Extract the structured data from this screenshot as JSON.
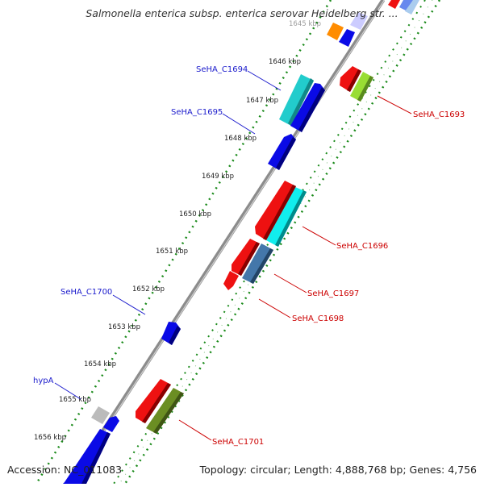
{
  "title": "Salmonella enterica subsp. enterica serovar Heidelberg str. ...",
  "accession": "Accession: NC_011083",
  "topology": "Topology: circular; Length: 4,888,768 bp; Genes: 4,756",
  "ticks": [
    "1645 kbp",
    "1646 kbp",
    "1647 kbp",
    "1648 kbp",
    "1649 kbp",
    "1650 kbp",
    "1651 kbp",
    "1652 kbp",
    "1653 kbp",
    "1654 kbp",
    "1655 kbp",
    "1656 kbp"
  ],
  "gene_labels": {
    "c1694": "SeHA_C1694",
    "c1695": "SeHA_C1695",
    "c1700": "SeHA_C1700",
    "hypa": "hypA",
    "c1693": "SeHA_C1693",
    "c1696": "SeHA_C1696",
    "c1697": "SeHA_C1697",
    "c1698": "SeHA_C1698",
    "c1701": "SeHA_C1701"
  },
  "colors": {
    "backbone": "#8a8a8a",
    "tick_marks": "#1a8a1a",
    "forward_label": "#1a1acc",
    "reverse_label": "#cc0000",
    "blue": "#0a0ae6",
    "red": "#ee1111",
    "cyan": "#22cccc",
    "bright_cyan": "#11eeee",
    "steelblue": "#4477aa",
    "olive": "#6b8e23",
    "lime": "#99dd33",
    "orange": "#ff8c00",
    "grey": "#bbbbbb"
  }
}
